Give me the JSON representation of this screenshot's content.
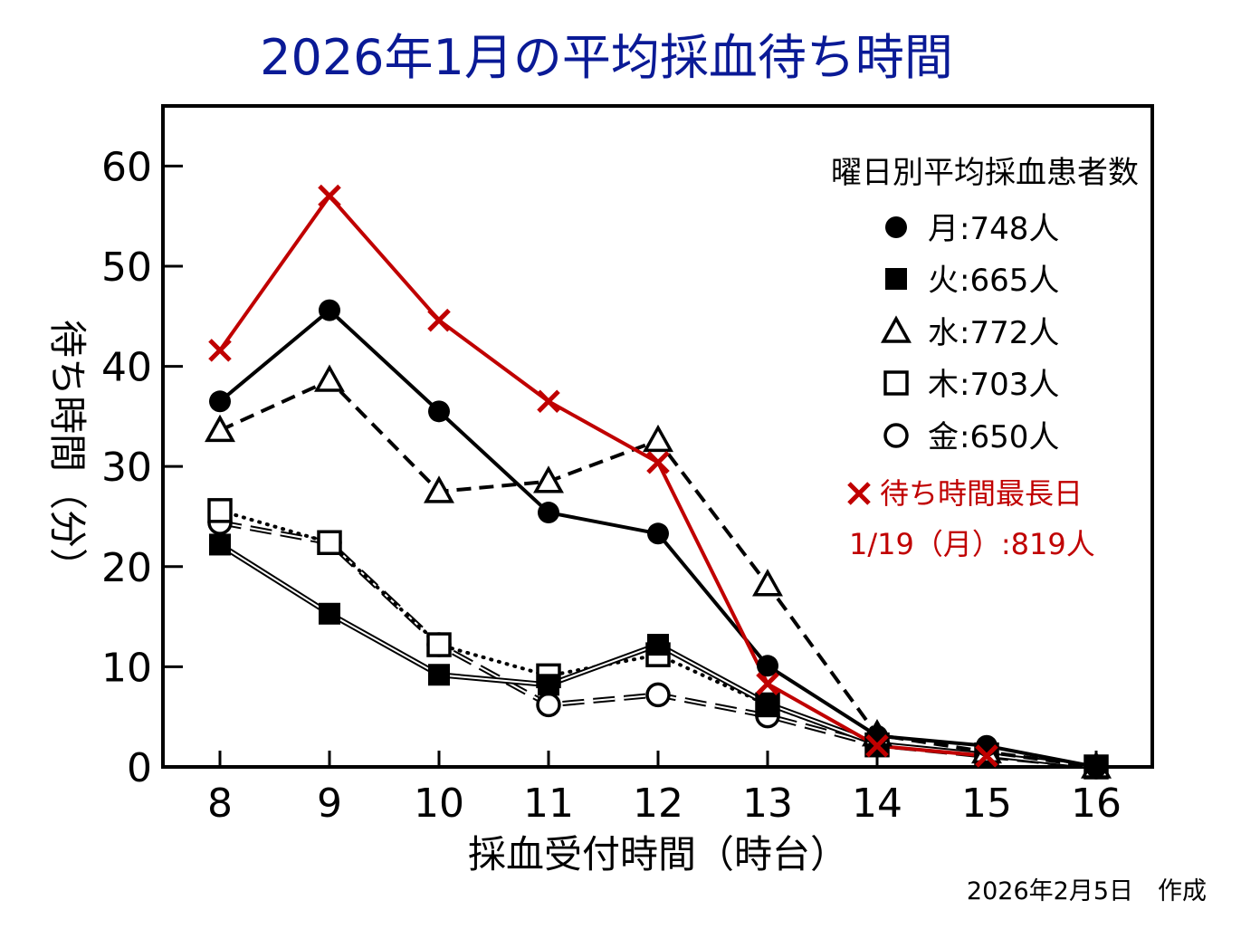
{
  "chart_data": {
    "type": "line",
    "title": "2026年1月の平均採血待ち時間",
    "xlabel": "採血受付時間（時台）",
    "ylabel": "待ち時間（分）",
    "ylim": [
      0,
      66
    ],
    "yticks": [
      0,
      10,
      20,
      30,
      40,
      50,
      60
    ],
    "x": [
      8,
      9,
      10,
      11,
      12,
      13,
      14,
      15,
      16
    ],
    "legend_title": "曜日別平均採血患者数",
    "series": [
      {
        "name": "月",
        "label": ":748人",
        "marker": "circle-filled",
        "style": "solid",
        "color": "#000000",
        "values": [
          36.5,
          45.6,
          35.5,
          25.4,
          23.3,
          10.1,
          3.1,
          2.1,
          0
        ]
      },
      {
        "name": "火",
        "label": ":665人",
        "marker": "square-filled",
        "style": "double",
        "color": "#000000",
        "values": [
          22.2,
          15.3,
          9.2,
          8.2,
          12.2,
          6.3,
          2.3,
          1.2,
          0
        ]
      },
      {
        "name": "水",
        "label": ":772人",
        "marker": "triangle-open",
        "style": "dashed",
        "color": "#000000",
        "values": [
          33.6,
          38.6,
          27.5,
          28.5,
          32.6,
          18.2,
          3.2,
          1.5,
          0
        ]
      },
      {
        "name": "木",
        "label": ":703人",
        "marker": "square-open",
        "style": "dotted",
        "color": "#000000",
        "values": [
          25.6,
          22.4,
          12.2,
          9.1,
          11.2,
          6.2,
          2.2,
          1.2,
          0
        ]
      },
      {
        "name": "金",
        "label": ":650人",
        "marker": "circle-open",
        "style": "longdash",
        "color": "#000000",
        "values": [
          24.4,
          22.4,
          12.2,
          6.2,
          7.2,
          5.1,
          2.2,
          1.1,
          0
        ]
      },
      {
        "name": "待ち時間最長日",
        "label": "1/19（月）:819人",
        "marker": "x",
        "style": "solid",
        "color": "#c00000",
        "values": [
          41.6,
          57.0,
          44.6,
          36.5,
          30.4,
          8.3,
          2.1,
          1.1,
          null
        ]
      }
    ]
  },
  "credit": "2026年2月5日　作成"
}
